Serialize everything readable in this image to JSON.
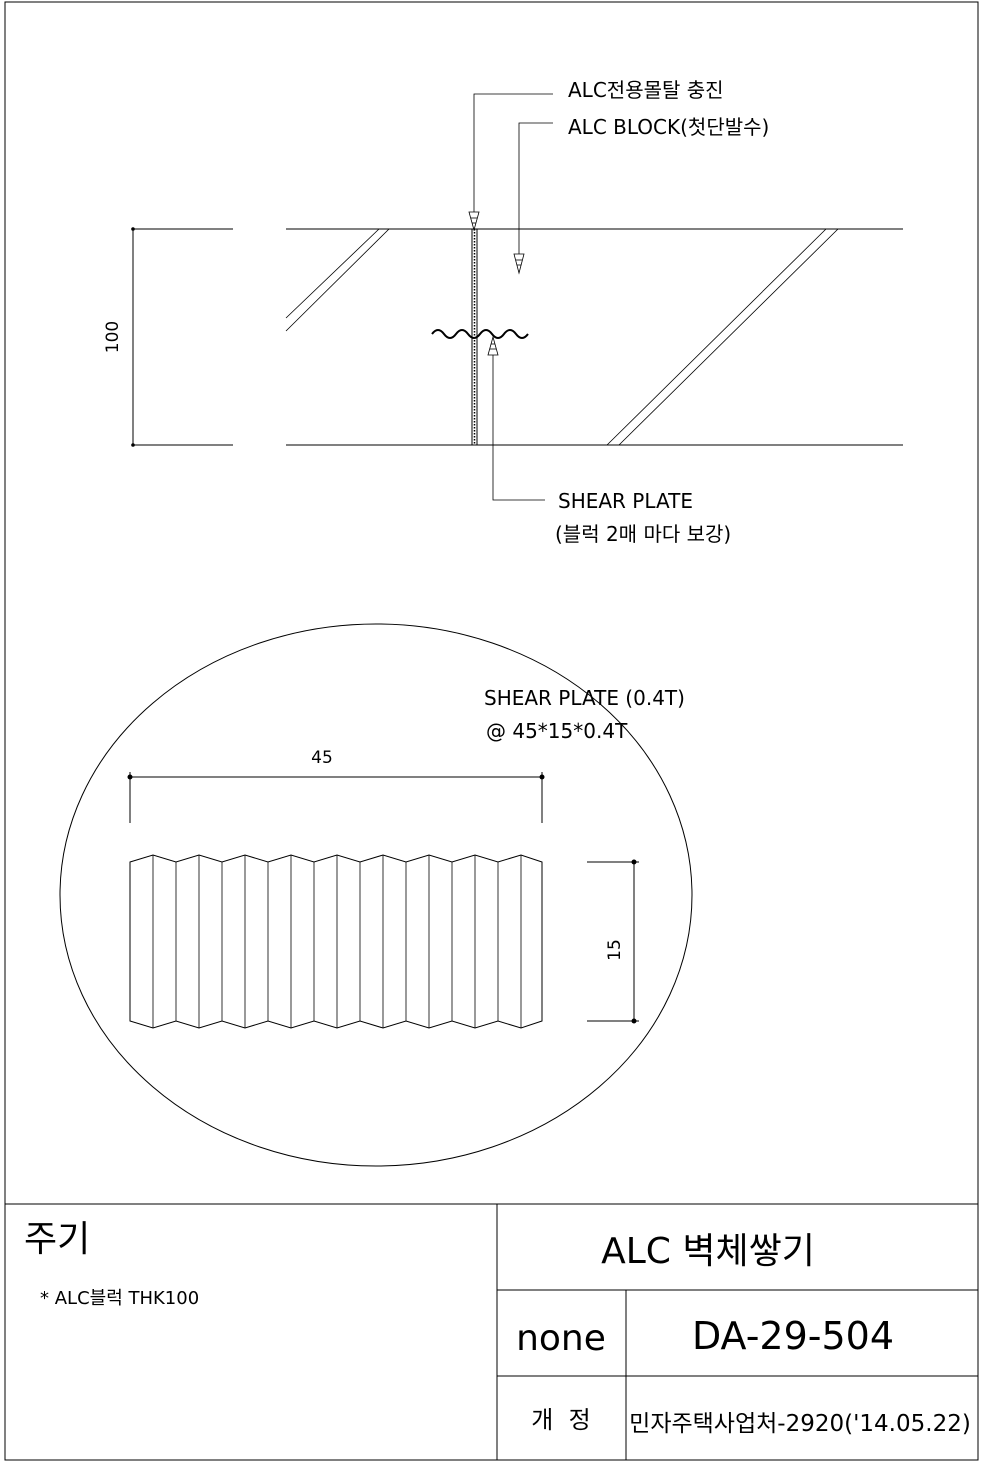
{
  "callouts": {
    "mortar_fill": "ALC전용몰탈 충진",
    "alc_block": "ALC BLOCK(첫단발수)",
    "shear_plate_line1": "SHEAR PLATE",
    "shear_plate_line2": "(블럭 2매 마다 보강)"
  },
  "dimensions": {
    "wall_thickness": "100",
    "plate_width": "45",
    "plate_height": "15"
  },
  "detail": {
    "label_line1": "SHEAR PLATE (0.4T)",
    "label_line2": "@ 45*15*0.4T"
  },
  "title_block": {
    "notes_heading": "주기",
    "note_item": "* ALC블럭 THK100",
    "drawing_title": "ALC 벽체쌓기",
    "scale": "none",
    "drawing_number": "DA-29-504",
    "revision_label": "개  정",
    "revision_value": "민자주택사업처-2920('14.05.22)"
  }
}
